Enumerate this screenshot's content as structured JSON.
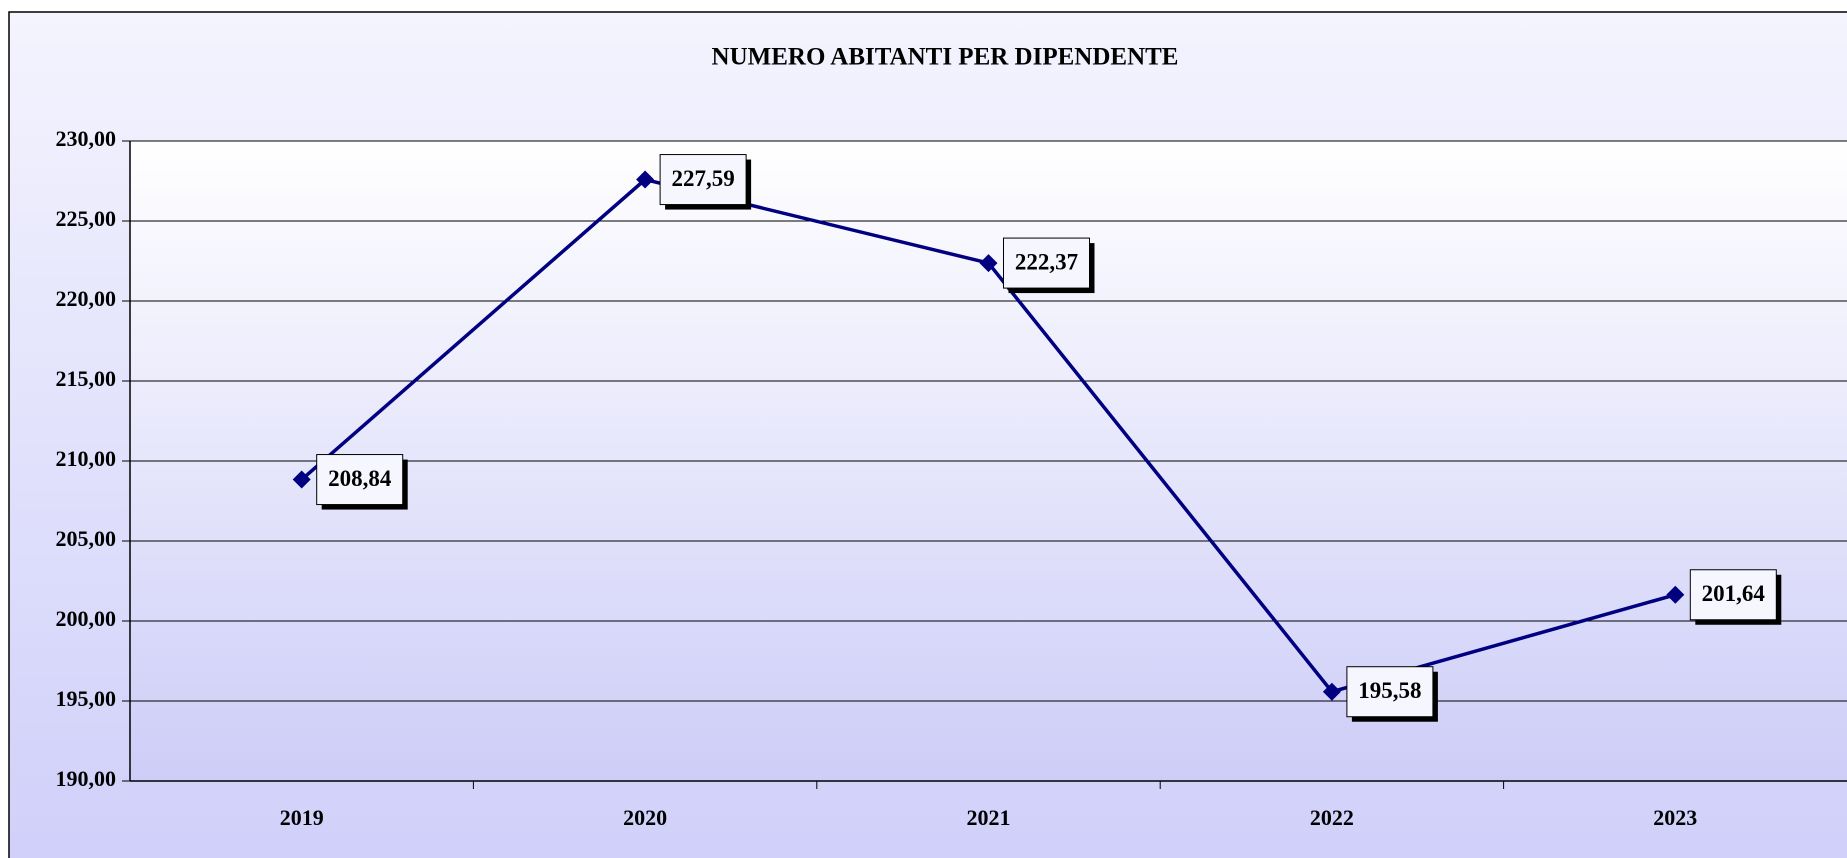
{
  "chart_data": {
    "type": "line",
    "title": "NUMERO ABITANTI PER DIPENDENTE",
    "categories": [
      "2019",
      "2020",
      "2021",
      "2022",
      "2023"
    ],
    "values": [
      208.84,
      227.59,
      222.37,
      195.58,
      201.64
    ],
    "value_labels": [
      "208,84",
      "227,59",
      "222,37",
      "195,58",
      "201,64"
    ],
    "color": "#000080",
    "ylim": [
      190,
      230
    ],
    "yticks": [
      {
        "value": 190,
        "label": "190,00"
      },
      {
        "value": 195,
        "label": "195,00"
      },
      {
        "value": 200,
        "label": "200,00"
      },
      {
        "value": 205,
        "label": "205,00"
      },
      {
        "value": 210,
        "label": "210,00"
      },
      {
        "value": 215,
        "label": "215,00"
      },
      {
        "value": 220,
        "label": "220,00"
      },
      {
        "value": 225,
        "label": "225,00"
      },
      {
        "value": 230,
        "label": "230,00"
      }
    ],
    "grid": true
  }
}
